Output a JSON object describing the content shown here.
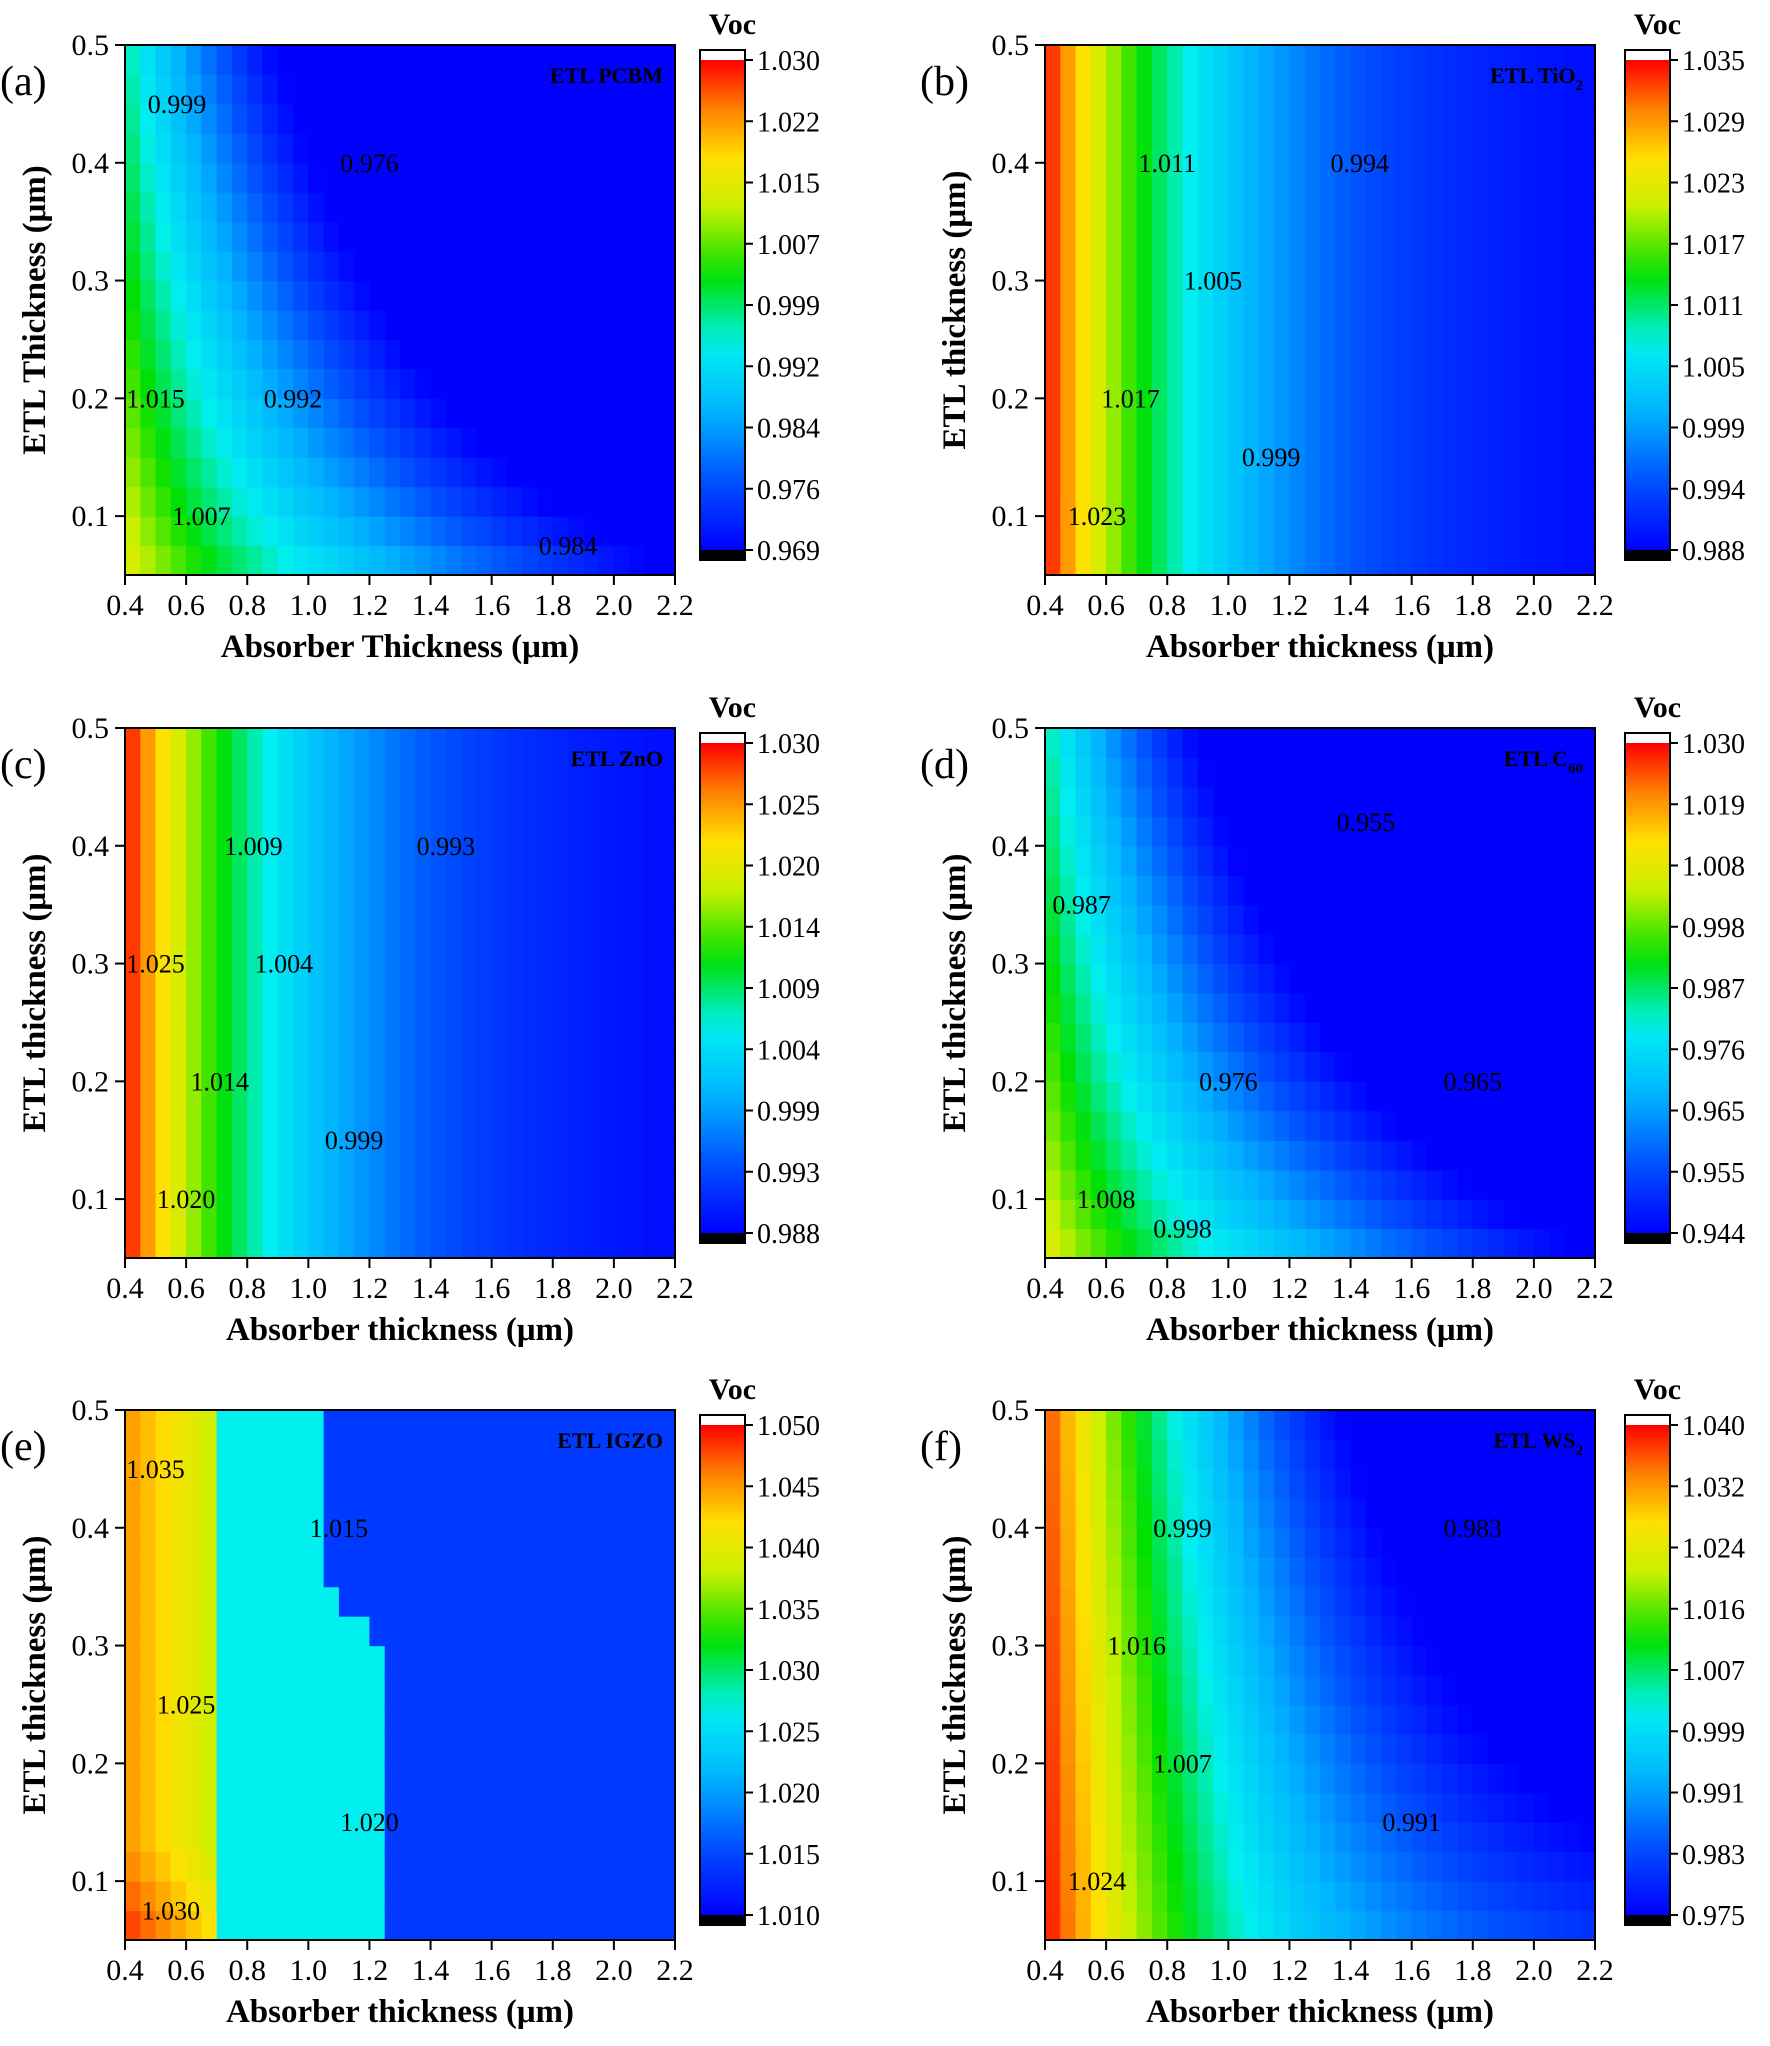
{
  "colors": {
    "colormap": [
      "#000000",
      "#0000ff",
      "#0080ff",
      "#00e5ff",
      "#00dd00",
      "#ffff00",
      "#ff8000",
      "#ff0000",
      "#ffffff"
    ]
  },
  "chart_data": [
    {
      "id": "a",
      "type": "heatmap",
      "panel_letter": "(a)",
      "etl_label": "ETL PCBM",
      "etl_base": "ETL PCBM",
      "etl_sub": "",
      "xlabel": "Absorber Thickness (μm)",
      "ylabel": "ETL Thickness (μm)",
      "xlim": [
        0.4,
        2.2
      ],
      "ylim": [
        0.05,
        0.5
      ],
      "xticks": [
        "0.4",
        "0.6",
        "0.8",
        "1.0",
        "1.2",
        "1.4",
        "1.6",
        "1.8",
        "2.0",
        "2.2"
      ],
      "yticks": [
        "0.1",
        "0.2",
        "0.3",
        "0.4",
        "0.5"
      ],
      "colorbar_title": "Voc",
      "colorbar_range": [
        0.969,
        1.03
      ],
      "colorbar_ticks": [
        "1.030",
        "1.022",
        "1.015",
        "1.007",
        "0.999",
        "0.992",
        "0.984",
        "0.976",
        "0.969"
      ],
      "model": "hyper",
      "contours": [
        {
          "label": "1.015",
          "label_at": [
            0.5,
            0.2
          ]
        },
        {
          "label": "1.007",
          "label_at": [
            0.65,
            0.1
          ]
        },
        {
          "label": "0.999",
          "label_at": [
            0.57,
            0.45
          ]
        },
        {
          "label": "0.992",
          "label_at": [
            0.95,
            0.2
          ]
        },
        {
          "label": "0.984",
          "label_at": [
            1.85,
            0.075
          ]
        },
        {
          "label": "0.976",
          "label_at": [
            1.2,
            0.4
          ]
        }
      ]
    },
    {
      "id": "b",
      "type": "heatmap",
      "panel_letter": "(b)",
      "etl_label": "ETL TiO2",
      "etl_base": "ETL TiO",
      "etl_sub": "2",
      "xlabel": "Absorber thickness (μm)",
      "ylabel": "ETL thickness (μm)",
      "xlim": [
        0.4,
        2.2
      ],
      "ylim": [
        0.05,
        0.5
      ],
      "xticks": [
        "0.4",
        "0.6",
        "0.8",
        "1.0",
        "1.2",
        "1.4",
        "1.6",
        "1.8",
        "2.0",
        "2.2"
      ],
      "yticks": [
        "0.1",
        "0.2",
        "0.3",
        "0.4",
        "0.5"
      ],
      "colorbar_title": "Voc",
      "colorbar_range": [
        0.988,
        1.035
      ],
      "colorbar_ticks": [
        "1.035",
        "1.029",
        "1.023",
        "1.017",
        "1.011",
        "1.005",
        "0.999",
        "0.994",
        "0.988"
      ],
      "model": "vertical",
      "contours": [
        {
          "label": "1.023",
          "label_at": [
            0.57,
            0.1
          ]
        },
        {
          "label": "1.017",
          "label_at": [
            0.68,
            0.2
          ]
        },
        {
          "label": "1.011",
          "label_at": [
            0.8,
            0.4
          ]
        },
        {
          "label": "1.005",
          "label_at": [
            0.95,
            0.3
          ]
        },
        {
          "label": "0.999",
          "label_at": [
            1.14,
            0.15
          ]
        },
        {
          "label": "0.994",
          "label_at": [
            1.43,
            0.4
          ]
        }
      ]
    },
    {
      "id": "c",
      "type": "heatmap",
      "panel_letter": "(c)",
      "etl_label": "ETL ZnO",
      "etl_base": "ETL ZnO",
      "etl_sub": "",
      "xlabel": "Absorber thickness (μm)",
      "ylabel": "ETL thickness (μm)",
      "xlim": [
        0.4,
        2.2
      ],
      "ylim": [
        0.05,
        0.5
      ],
      "xticks": [
        "0.4",
        "0.6",
        "0.8",
        "1.0",
        "1.2",
        "1.4",
        "1.6",
        "1.8",
        "2.0",
        "2.2"
      ],
      "yticks": [
        "0.1",
        "0.2",
        "0.3",
        "0.4",
        "0.5"
      ],
      "colorbar_title": "Voc",
      "colorbar_range": [
        0.988,
        1.03
      ],
      "colorbar_ticks": [
        "1.030",
        "1.025",
        "1.020",
        "1.014",
        "1.009",
        "1.004",
        "0.999",
        "0.993",
        "0.988"
      ],
      "model": "vertical",
      "contours": [
        {
          "label": "1.025",
          "label_at": [
            0.5,
            0.3
          ]
        },
        {
          "label": "1.020",
          "label_at": [
            0.6,
            0.1
          ]
        },
        {
          "label": "1.014",
          "label_at": [
            0.71,
            0.2
          ]
        },
        {
          "label": "1.009",
          "label_at": [
            0.82,
            0.4
          ]
        },
        {
          "label": "1.004",
          "label_at": [
            0.92,
            0.3
          ]
        },
        {
          "label": "0.999",
          "label_at": [
            1.15,
            0.15
          ]
        },
        {
          "label": "0.993",
          "label_at": [
            1.45,
            0.4
          ]
        }
      ]
    },
    {
      "id": "d",
      "type": "heatmap",
      "panel_letter": "(d)",
      "etl_label": "ETL C60",
      "etl_base": "ETL C",
      "etl_sub": "60",
      "xlabel": "Absorber thickness (μm)",
      "ylabel": "ETL thickness (μm)",
      "xlim": [
        0.4,
        2.2
      ],
      "ylim": [
        0.05,
        0.5
      ],
      "xticks": [
        "0.4",
        "0.6",
        "0.8",
        "1.0",
        "1.2",
        "1.4",
        "1.6",
        "1.8",
        "2.0",
        "2.2"
      ],
      "yticks": [
        "0.1",
        "0.2",
        "0.3",
        "0.4",
        "0.5"
      ],
      "colorbar_title": "Voc",
      "colorbar_range": [
        0.944,
        1.03
      ],
      "colorbar_ticks": [
        "1.030",
        "1.019",
        "1.008",
        "0.998",
        "0.987",
        "0.976",
        "0.965",
        "0.955",
        "0.944"
      ],
      "model": "hyper",
      "contours": [
        {
          "label": "1.008",
          "label_at": [
            0.6,
            0.1
          ]
        },
        {
          "label": "0.998",
          "label_at": [
            0.85,
            0.075
          ]
        },
        {
          "label": "0.987",
          "label_at": [
            0.52,
            0.35
          ]
        },
        {
          "label": "0.976",
          "label_at": [
            1.0,
            0.2
          ]
        },
        {
          "label": "0.965",
          "label_at": [
            1.8,
            0.2
          ]
        },
        {
          "label": "0.955",
          "label_at": [
            1.45,
            0.42
          ]
        }
      ]
    },
    {
      "id": "e",
      "type": "heatmap",
      "panel_letter": "(e)",
      "etl_label": "ETL IGZO",
      "etl_base": "ETL IGZO",
      "etl_sub": "",
      "xlabel": "Absorber thickness (μm)",
      "ylabel": "ETL thickness (μm)",
      "xlim": [
        0.4,
        2.2
      ],
      "ylim": [
        0.05,
        0.5
      ],
      "xticks": [
        "0.4",
        "0.6",
        "0.8",
        "1.0",
        "1.2",
        "1.4",
        "1.6",
        "1.8",
        "2.0",
        "2.2"
      ],
      "yticks": [
        "0.1",
        "0.2",
        "0.3",
        "0.4",
        "0.5"
      ],
      "colorbar_title": "Voc",
      "colorbar_range": [
        1.01,
        1.05
      ],
      "colorbar_ticks": [
        "1.050",
        "1.045",
        "1.040",
        "1.035",
        "1.030",
        "1.025",
        "1.020",
        "1.015",
        "1.010"
      ],
      "model": "igzo",
      "contours": [
        {
          "label": "1.035",
          "label_at": [
            0.5,
            0.45
          ]
        },
        {
          "label": "1.030",
          "label_at": [
            0.55,
            0.075
          ]
        },
        {
          "label": "1.025",
          "label_at": [
            0.6,
            0.25
          ]
        },
        {
          "label": "1.020",
          "label_at": [
            1.2,
            0.15
          ]
        },
        {
          "label": "1.015",
          "label_at": [
            1.1,
            0.4
          ]
        }
      ]
    },
    {
      "id": "f",
      "type": "heatmap",
      "panel_letter": "(f)",
      "etl_label": "ETL WS2",
      "etl_base": "ETL WS",
      "etl_sub": "2",
      "xlabel": "Absorber thickness (μm)",
      "ylabel": "ETL thickness (μm)",
      "xlim": [
        0.4,
        2.2
      ],
      "ylim": [
        0.05,
        0.5
      ],
      "xticks": [
        "0.4",
        "0.6",
        "0.8",
        "1.0",
        "1.2",
        "1.4",
        "1.6",
        "1.8",
        "2.0",
        "2.2"
      ],
      "yticks": [
        "0.1",
        "0.2",
        "0.3",
        "0.4",
        "0.5"
      ],
      "colorbar_title": "Voc",
      "colorbar_range": [
        0.975,
        1.04
      ],
      "colorbar_ticks": [
        "1.040",
        "1.032",
        "1.024",
        "1.016",
        "1.007",
        "0.999",
        "0.991",
        "0.983",
        "0.975"
      ],
      "model": "ws2",
      "contours": [
        {
          "label": "1.024",
          "label_at": [
            0.57,
            0.1
          ]
        },
        {
          "label": "1.016",
          "label_at": [
            0.7,
            0.3
          ]
        },
        {
          "label": "1.007",
          "label_at": [
            0.85,
            0.2
          ]
        },
        {
          "label": "0.999",
          "label_at": [
            0.85,
            0.4
          ]
        },
        {
          "label": "0.991",
          "label_at": [
            1.6,
            0.15
          ]
        },
        {
          "label": "0.983",
          "label_at": [
            1.8,
            0.4
          ]
        }
      ]
    }
  ]
}
